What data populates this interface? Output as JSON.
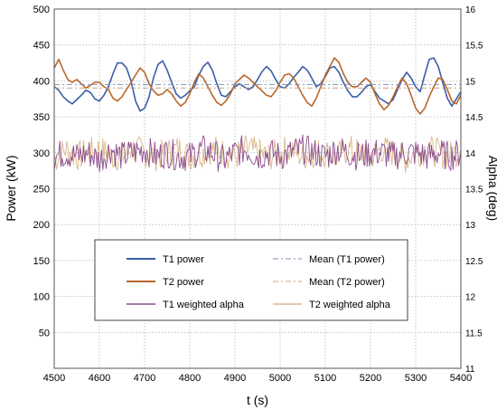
{
  "chart_data": {
    "type": "line",
    "xlabel": "t (s)",
    "ylabel_left": "Power (kW)",
    "ylabel_right": "Alpha (deg)",
    "xlim": [
      4500,
      5400
    ],
    "ylim_left": [
      0,
      500
    ],
    "ylim_right": [
      11,
      16
    ],
    "x_ticks": [
      "4500",
      "4600",
      "4700",
      "4800",
      "4900",
      "5000",
      "5100",
      "5200",
      "5300",
      "5400"
    ],
    "y_left_ticks": [
      "50",
      "100",
      "150",
      "200",
      "250",
      "300",
      "350",
      "400",
      "450",
      "500"
    ],
    "y_right_ticks": [
      "11",
      "11.5",
      "12",
      "12.5",
      "13",
      "13.5",
      "14",
      "14.5",
      "15",
      "15.5",
      "16"
    ],
    "grid": true,
    "legend_position": "lower-center",
    "series": [
      {
        "name": "T1 power",
        "axis": "left",
        "color": "#3a5ea8",
        "style": "solid",
        "x": [
          4500,
          4510,
          4520,
          4530,
          4540,
          4550,
          4560,
          4570,
          4580,
          4590,
          4600,
          4610,
          4620,
          4630,
          4640,
          4650,
          4660,
          4670,
          4680,
          4690,
          4700,
          4710,
          4720,
          4730,
          4740,
          4750,
          4760,
          4770,
          4780,
          4790,
          4800,
          4810,
          4820,
          4830,
          4840,
          4850,
          4860,
          4870,
          4880,
          4890,
          4900,
          4910,
          4920,
          4930,
          4940,
          4950,
          4960,
          4970,
          4980,
          4990,
          5000,
          5010,
          5020,
          5030,
          5040,
          5050,
          5060,
          5070,
          5080,
          5090,
          5100,
          5110,
          5120,
          5130,
          5140,
          5150,
          5160,
          5170,
          5180,
          5190,
          5200,
          5210,
          5220,
          5230,
          5240,
          5250,
          5260,
          5270,
          5280,
          5290,
          5300,
          5310,
          5320,
          5330,
          5340,
          5350,
          5360,
          5370,
          5380,
          5390,
          5400
        ],
        "values": [
          392,
          387,
          378,
          372,
          368,
          374,
          380,
          387,
          384,
          375,
          372,
          380,
          392,
          410,
          425,
          425,
          418,
          400,
          372,
          358,
          362,
          378,
          405,
          423,
          428,
          415,
          398,
          382,
          376,
          380,
          386,
          392,
          408,
          420,
          426,
          415,
          396,
          380,
          378,
          385,
          392,
          396,
          392,
          388,
          392,
          402,
          413,
          420,
          414,
          402,
          392,
          390,
          396,
          405,
          412,
          420,
          415,
          404,
          392,
          396,
          406,
          418,
          420,
          412,
          398,
          386,
          378,
          378,
          384,
          392,
          395,
          385,
          376,
          372,
          368,
          374,
          388,
          402,
          412,
          404,
          392,
          385,
          408,
          430,
          432,
          420,
          398,
          376,
          365,
          375,
          385
        ]
      },
      {
        "name": "T2 power",
        "axis": "left",
        "color": "#b8662a",
        "style": "solid",
        "x": [
          4500,
          4510,
          4520,
          4530,
          4540,
          4550,
          4560,
          4570,
          4580,
          4590,
          4600,
          4610,
          4620,
          4630,
          4640,
          4650,
          4660,
          4670,
          4680,
          4690,
          4700,
          4710,
          4720,
          4730,
          4740,
          4750,
          4760,
          4770,
          4780,
          4790,
          4800,
          4810,
          4820,
          4830,
          4840,
          4850,
          4860,
          4870,
          4880,
          4890,
          4900,
          4910,
          4920,
          4930,
          4940,
          4950,
          4960,
          4970,
          4980,
          4990,
          5000,
          5010,
          5020,
          5030,
          5040,
          5050,
          5060,
          5070,
          5080,
          5090,
          5100,
          5110,
          5120,
          5130,
          5140,
          5150,
          5160,
          5170,
          5180,
          5190,
          5200,
          5210,
          5220,
          5230,
          5240,
          5250,
          5260,
          5270,
          5280,
          5290,
          5300,
          5310,
          5320,
          5330,
          5340,
          5350,
          5360,
          5370,
          5380,
          5390,
          5400
        ],
        "values": [
          418,
          430,
          415,
          402,
          398,
          402,
          396,
          390,
          394,
          398,
          398,
          392,
          388,
          376,
          372,
          378,
          388,
          398,
          408,
          418,
          412,
          396,
          386,
          380,
          382,
          388,
          382,
          372,
          365,
          370,
          382,
          398,
          410,
          404,
          392,
          380,
          370,
          366,
          372,
          382,
          396,
          402,
          408,
          404,
          398,
          392,
          386,
          380,
          378,
          386,
          398,
          408,
          410,
          404,
          392,
          380,
          370,
          365,
          376,
          392,
          408,
          420,
          432,
          426,
          410,
          398,
          392,
          392,
          398,
          404,
          398,
          382,
          368,
          360,
          366,
          378,
          392,
          404,
          396,
          380,
          362,
          354,
          362,
          378,
          392,
          404,
          402,
          388,
          372,
          368,
          380
        ]
      },
      {
        "name": "Mean (T1 power)",
        "axis": "left",
        "color": "#7f93b8",
        "style": "dashdot",
        "x": [
          4500,
          5400
        ],
        "values": [
          395,
          395
        ]
      },
      {
        "name": "Mean (T2 power)",
        "axis": "left",
        "color": "#c9a07f",
        "style": "dashdot",
        "x": [
          4500,
          5400
        ],
        "values": [
          390,
          390
        ]
      },
      {
        "name": "T1 weighted alpha",
        "axis": "right",
        "color": "#8c4b8f",
        "style": "solid",
        "x": [
          4500,
          4525,
          4550,
          4575,
          4600,
          4625,
          4650,
          4675,
          4700,
          4725,
          4750,
          4775,
          4800,
          4825,
          4850,
          4875,
          4900,
          4925,
          4950,
          4975,
          5000,
          5025,
          5050,
          5075,
          5100,
          5125,
          5150,
          5175,
          5200,
          5225,
          5250,
          5275,
          5300,
          5325,
          5350,
          5375,
          5400
        ],
        "values": [
          13.95,
          14.0,
          13.95,
          14.0,
          13.9,
          14.05,
          13.95,
          14.0,
          14.05,
          13.95,
          14.0,
          13.95,
          13.95,
          14.05,
          14.0,
          13.9,
          14.0,
          14.05,
          13.95,
          14.0,
          13.95,
          14.0,
          14.05,
          14.0,
          13.95,
          14.05,
          14.0,
          13.95,
          14.0,
          14.0,
          13.95,
          14.0,
          14.0,
          13.95,
          14.0,
          13.95,
          14.0
        ]
      },
      {
        "name": "T2 weighted alpha",
        "axis": "right",
        "color": "#d9b88a",
        "style": "solid",
        "x": [
          4500,
          4525,
          4550,
          4575,
          4600,
          4625,
          4650,
          4675,
          4700,
          4725,
          4750,
          4775,
          4800,
          4825,
          4850,
          4875,
          4900,
          4925,
          4950,
          4975,
          5000,
          5025,
          5050,
          5075,
          5100,
          5125,
          5150,
          5175,
          5200,
          5225,
          5250,
          5275,
          5300,
          5325,
          5350,
          5375,
          5400
        ],
        "values": [
          13.9,
          14.05,
          13.95,
          14.0,
          14.05,
          13.95,
          13.95,
          14.05,
          14.0,
          13.95,
          14.0,
          14.05,
          13.95,
          14.0,
          14.05,
          14.0,
          13.95,
          14.05,
          14.0,
          13.95,
          14.0,
          14.05,
          13.95,
          14.0,
          14.0,
          13.95,
          14.05,
          14.0,
          13.95,
          14.05,
          14.0,
          13.9,
          14.0,
          14.05,
          14.0,
          13.95,
          14.05
        ]
      }
    ]
  }
}
